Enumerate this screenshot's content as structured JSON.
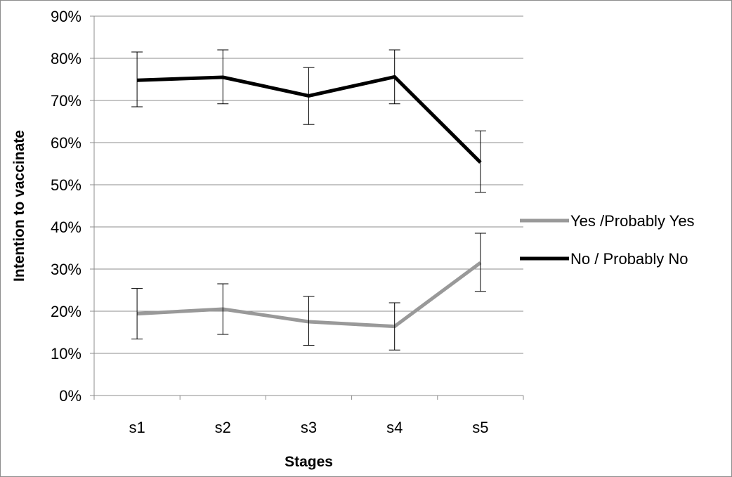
{
  "chart_data": {
    "type": "line",
    "categories": [
      "s1",
      "s2",
      "s3",
      "s4",
      "s5"
    ],
    "series": [
      {
        "name": "Yes /Probably Yes",
        "color": "#999999",
        "values": [
          0.194,
          0.205,
          0.175,
          0.164,
          0.315
        ],
        "error_low": [
          0.134,
          0.145,
          0.119,
          0.108,
          0.247
        ],
        "error_high": [
          0.254,
          0.265,
          0.235,
          0.22,
          0.385
        ]
      },
      {
        "name": "No / Probably No",
        "color": "#000000",
        "values": [
          0.748,
          0.755,
          0.711,
          0.756,
          0.553
        ],
        "error_low": [
          0.685,
          0.692,
          0.643,
          0.692,
          0.482
        ],
        "error_high": [
          0.815,
          0.82,
          0.778,
          0.82,
          0.628
        ]
      }
    ],
    "xlabel": "Stages",
    "ylabel": "Intention to vaccinate",
    "ylim": [
      0,
      0.9
    ],
    "yticks": [
      "0%",
      "10%",
      "20%",
      "30%",
      "40%",
      "50%",
      "60%",
      "70%",
      "80%",
      "90%"
    ],
    "grid": true,
    "legend_position": "right"
  }
}
